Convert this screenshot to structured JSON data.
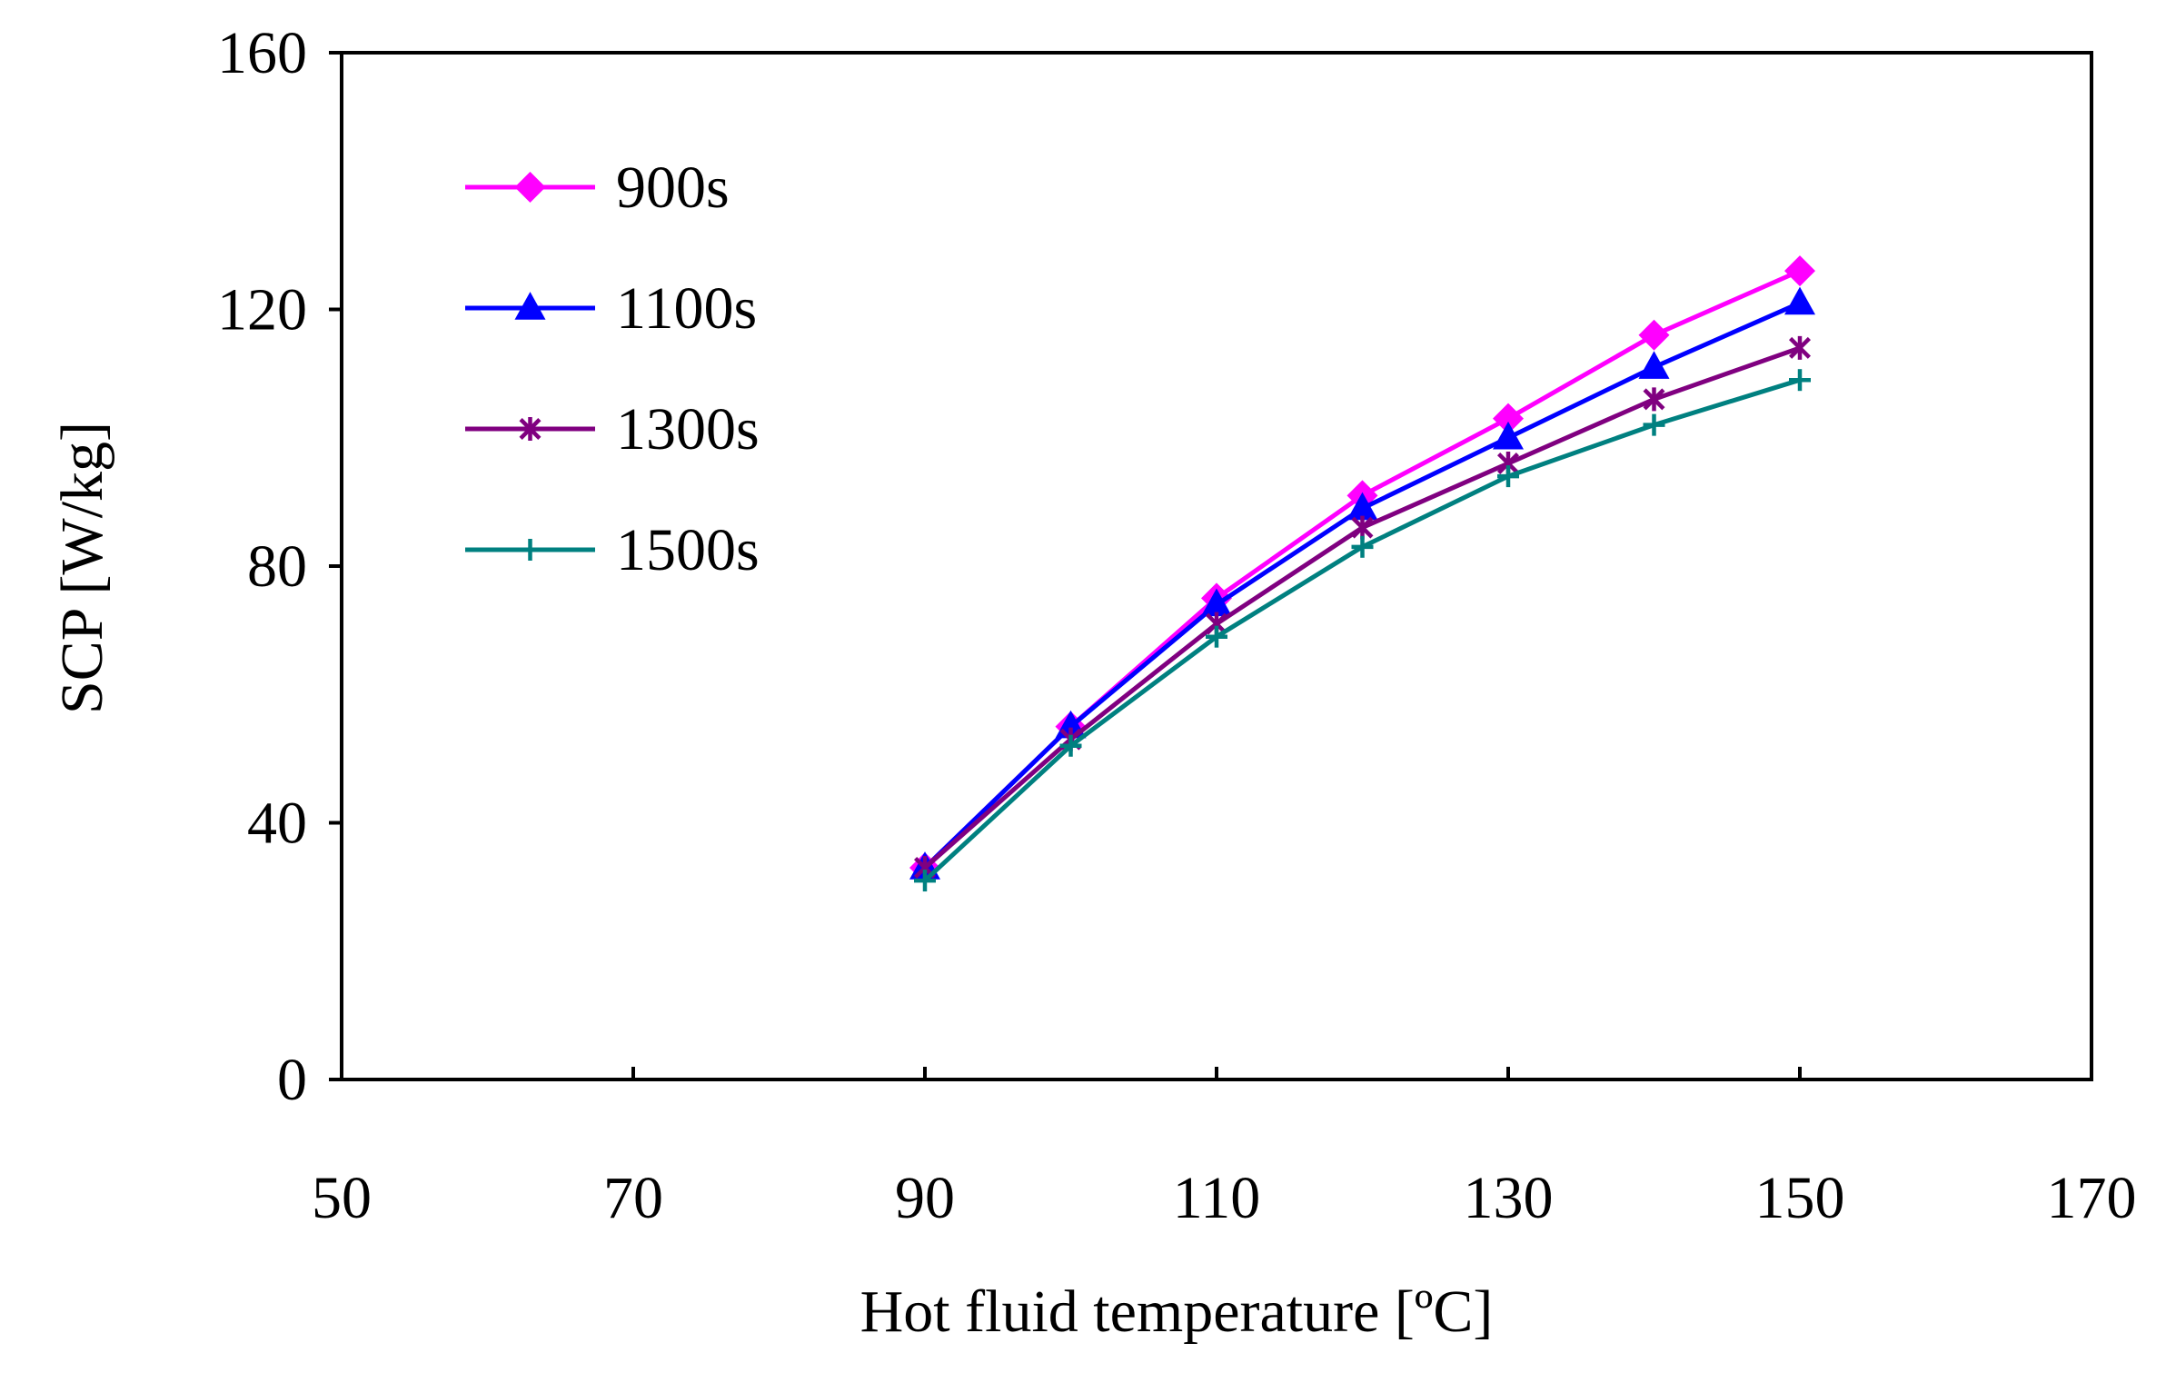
{
  "chart_data": {
    "type": "line",
    "title": "",
    "xlabel": "Hot fluid temperature [ºC]",
    "ylabel": "SCP [W/kg]",
    "xlim": [
      50,
      170
    ],
    "ylim": [
      0,
      160
    ],
    "xticks": [
      50,
      70,
      90,
      110,
      130,
      150,
      170
    ],
    "yticks": [
      0,
      40,
      80,
      120,
      160
    ],
    "x": [
      90,
      100,
      110,
      120,
      130,
      140,
      150
    ],
    "grid": false,
    "legend_position": "top-left",
    "series": [
      {
        "name": "900s",
        "color": "#ff00ff",
        "marker": "diamond",
        "values": [
          33,
          55,
          75,
          91,
          103,
          116,
          126
        ]
      },
      {
        "name": "1100s",
        "color": "#0000ff",
        "marker": "triangle",
        "values": [
          33,
          55,
          74,
          89,
          100,
          111,
          121
        ]
      },
      {
        "name": "1300s",
        "color": "#800080",
        "marker": "asterisk",
        "values": [
          33,
          53,
          71,
          86,
          96,
          106,
          114
        ]
      },
      {
        "name": "1500s",
        "color": "#008080",
        "marker": "plus",
        "values": [
          31,
          52,
          69,
          83,
          94,
          102,
          109
        ]
      }
    ]
  }
}
